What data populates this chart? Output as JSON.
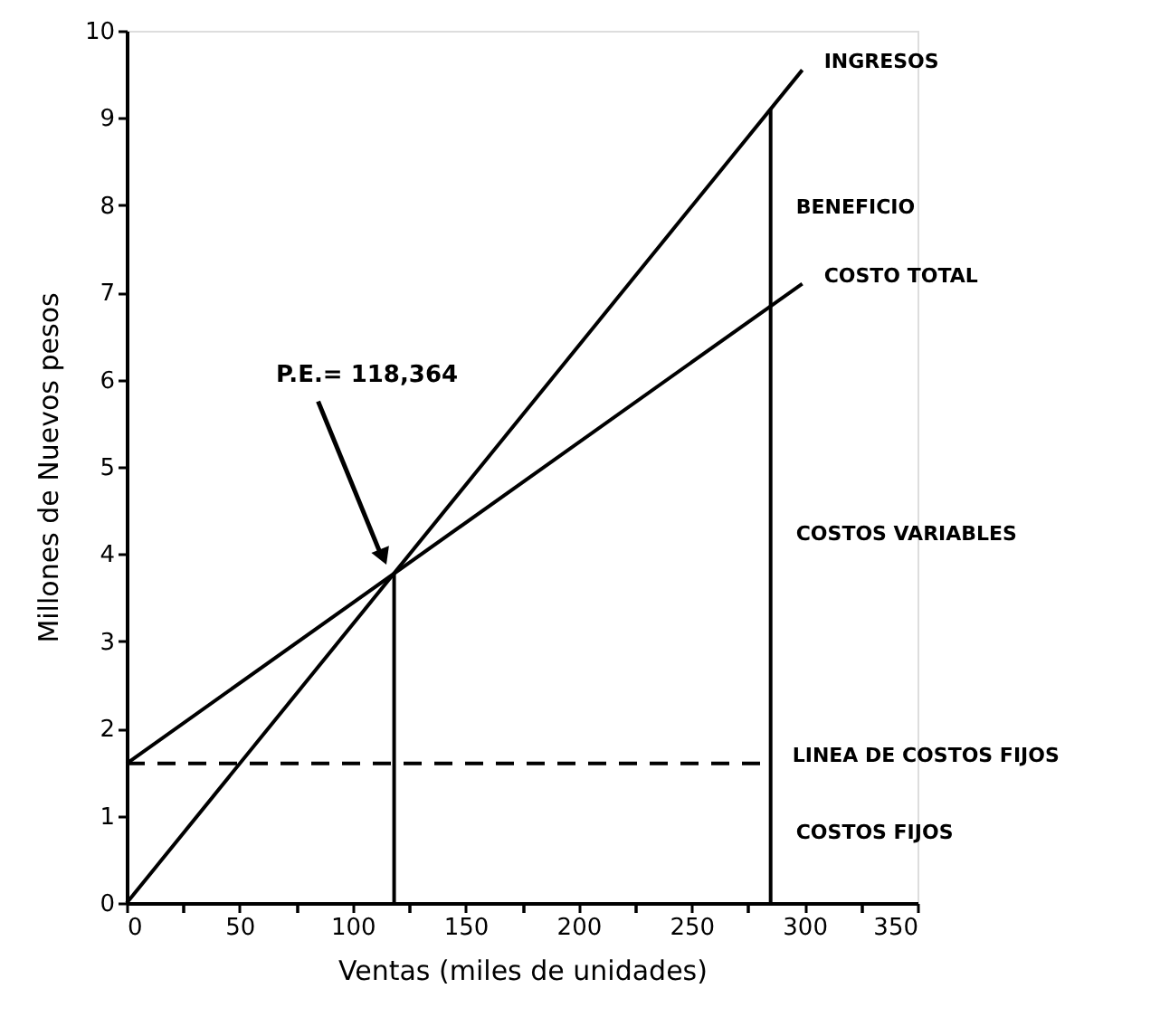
{
  "chart_data": {
    "type": "line",
    "xlabel": "Ventas (miles de unidades)",
    "ylabel": "Millones de Nuevos pesos",
    "xlim": [
      0,
      350
    ],
    "ylim": [
      0,
      10
    ],
    "xticks": [
      0,
      {
        "value": 25,
        "label": null
      },
      50,
      {
        "value": 75,
        "label": null
      },
      100,
      {
        "value": 125,
        "label": null
      },
      150,
      {
        "value": 175,
        "label": null
      },
      200,
      {
        "value": 225,
        "label": null
      },
      250,
      {
        "value": 275,
        "label": null
      },
      300,
      {
        "value": 325,
        "label": null
      },
      350
    ],
    "yticks": [
      0,
      1,
      2,
      3,
      4,
      5,
      6,
      7,
      8,
      9,
      10
    ],
    "grid": false,
    "marker": "none",
    "series": [
      {
        "name": "INGRESOS",
        "color": "#000000",
        "x": [
          0,
          299
        ],
        "values": [
          0,
          9.55
        ]
      },
      {
        "name": "COSTO TOTAL",
        "color": "#000000",
        "x": [
          0,
          299
        ],
        "values": [
          1.6,
          7.1
        ]
      },
      {
        "name": "LINEA DE COSTOS FIJOS",
        "color": "#000000",
        "x": [
          0,
          285
        ],
        "values": [
          1.6,
          1.6
        ],
        "line_style": "dashed"
      },
      {
        "color": "#000000",
        "x": [
          118.364,
          118.364
        ],
        "values": [
          0,
          3.78
        ]
      },
      {
        "color": "#000000",
        "x": [
          285,
          285
        ],
        "values": [
          0,
          9.1
        ]
      }
    ],
    "annotations": [
      "P.E.= 118,364",
      "BENEFICIO",
      "COSTOS VARIABLES",
      "COSTOS FIJOS"
    ]
  }
}
